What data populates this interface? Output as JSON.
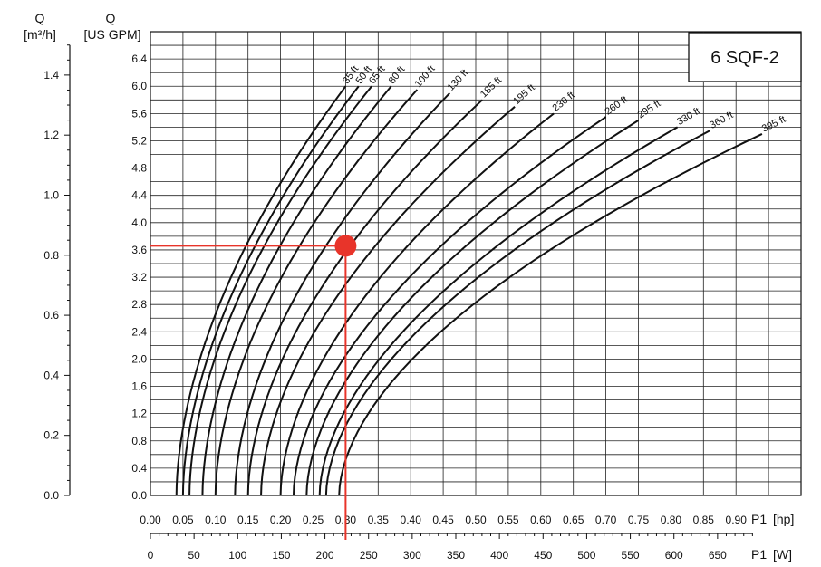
{
  "chart_data": {
    "type": "line",
    "title": "6 SQF-2",
    "x_primary": {
      "label": "P1",
      "unit": "[hp]",
      "range": [
        0.0,
        1.0
      ],
      "ticks": [
        "0.00",
        "0.05",
        "0.10",
        "0.15",
        "0.20",
        "0.25",
        "0.30",
        "0.35",
        "0.40",
        "0.45",
        "0.50",
        "0.55",
        "0.60",
        "0.65",
        "0.70",
        "0.75",
        "0.80",
        "0.85",
        "0.90"
      ]
    },
    "x_secondary": {
      "label": "P1",
      "unit": "[W]",
      "ticks": [
        "0",
        "50",
        "100",
        "150",
        "200",
        "250",
        "300",
        "350",
        "400",
        "450",
        "500",
        "550",
        "600",
        "650"
      ]
    },
    "y_primary": {
      "label": "Q",
      "unit": "[US GPM]",
      "range": [
        0.0,
        6.8
      ],
      "ticks": [
        "0.0",
        "0.4",
        "0.8",
        "1.2",
        "1.6",
        "2.0",
        "2.4",
        "2.8",
        "3.2",
        "3.6",
        "4.0",
        "4.4",
        "4.8",
        "5.2",
        "5.6",
        "6.0",
        "6.4"
      ]
    },
    "y_secondary": {
      "label": "Q",
      "unit": "[m³/h]",
      "ticks": [
        "0.0",
        "0.2",
        "0.4",
        "0.6",
        "0.8",
        "1.0",
        "1.2",
        "1.4"
      ]
    },
    "grid": true,
    "series": [
      {
        "name": "35 ft",
        "p0": 0.04,
        "p_end": 0.3,
        "q_end": 6.0
      },
      {
        "name": "50 ft",
        "p0": 0.05,
        "p_end": 0.32,
        "q_end": 6.0
      },
      {
        "name": "65 ft",
        "p0": 0.06,
        "p_end": 0.34,
        "q_end": 6.0
      },
      {
        "name": "80 ft",
        "p0": 0.08,
        "p_end": 0.37,
        "q_end": 6.0
      },
      {
        "name": "100 ft",
        "p0": 0.1,
        "p_end": 0.41,
        "q_end": 5.95
      },
      {
        "name": "130 ft",
        "p0": 0.13,
        "p_end": 0.46,
        "q_end": 5.9
      },
      {
        "name": "185 ft",
        "p0": 0.15,
        "p_end": 0.51,
        "q_end": 5.8
      },
      {
        "name": "195 ft",
        "p0": 0.17,
        "p_end": 0.56,
        "q_end": 5.7
      },
      {
        "name": "230 ft",
        "p0": 0.2,
        "p_end": 0.62,
        "q_end": 5.6
      },
      {
        "name": "260 ft",
        "p0": 0.22,
        "p_end": 0.7,
        "q_end": 5.55
      },
      {
        "name": "295 ft",
        "p0": 0.24,
        "p_end": 0.75,
        "q_end": 5.5
      },
      {
        "name": "330 ft",
        "p0": 0.26,
        "p_end": 0.81,
        "q_end": 5.4
      },
      {
        "name": "360 ft",
        "p0": 0.27,
        "p_end": 0.86,
        "q_end": 5.35
      },
      {
        "name": "395 ft",
        "p0": 0.29,
        "p_end": 0.94,
        "q_end": 5.3
      }
    ],
    "marker": {
      "x_hp": 0.3,
      "y_gpm": 3.66,
      "color": "#e8342a"
    }
  }
}
